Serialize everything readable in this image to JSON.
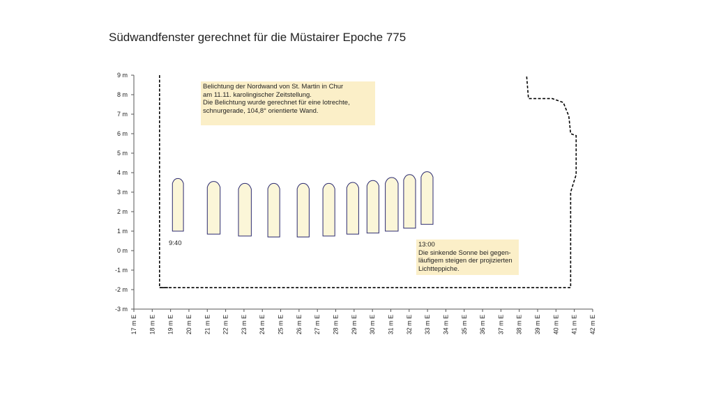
{
  "title": "Südwandfenster gerechnet für die Müstairer Epoche 775",
  "colors": {
    "window_fill": "#fbf6d8",
    "window_stroke": "#2b2a70",
    "note_background": "#fbefc8",
    "axis": "#555555",
    "wall_outline": "#000000"
  },
  "chart_data": {
    "type": "area",
    "grid": false,
    "xlim": [
      17,
      42
    ],
    "ylim": [
      -3,
      9
    ],
    "x_tick_labels": [
      "17 m E",
      "18 m E",
      "19 m E",
      "20 m E",
      "21 m E",
      "22 m E",
      "23 m E",
      "24 m E",
      "25 m E",
      "26 m E",
      "27 m E",
      "28 m E",
      "29 m E",
      "30 m E",
      "31 m E",
      "32 m E",
      "33 m E",
      "34 m E",
      "35 m E",
      "36 m E",
      "37 m E",
      "38 m E",
      "39 m E",
      "40 m E",
      "41 m E",
      "42 m E"
    ],
    "y_tick_labels": [
      "9 m",
      "8 m",
      "7 m",
      "6 m",
      "5 m",
      "4 m",
      "3 m",
      "2 m",
      "1 m",
      "0 m",
      "-1 m",
      "-2 m",
      "-3 m"
    ],
    "light_patches": [
      {
        "x_left": 19.1,
        "x_right": 19.7,
        "y_bottom": 1.0,
        "y_top": 3.7
      },
      {
        "x_left": 21.0,
        "x_right": 21.7,
        "y_bottom": 0.85,
        "y_top": 3.55
      },
      {
        "x_left": 22.7,
        "x_right": 23.4,
        "y_bottom": 0.75,
        "y_top": 3.45
      },
      {
        "x_left": 24.3,
        "x_right": 24.95,
        "y_bottom": 0.7,
        "y_top": 3.45
      },
      {
        "x_left": 25.9,
        "x_right": 26.55,
        "y_bottom": 0.7,
        "y_top": 3.45
      },
      {
        "x_left": 27.3,
        "x_right": 27.95,
        "y_bottom": 0.75,
        "y_top": 3.45
      },
      {
        "x_left": 28.6,
        "x_right": 29.25,
        "y_bottom": 0.85,
        "y_top": 3.5
      },
      {
        "x_left": 29.7,
        "x_right": 30.35,
        "y_bottom": 0.9,
        "y_top": 3.6
      },
      {
        "x_left": 30.7,
        "x_right": 31.4,
        "y_bottom": 1.0,
        "y_top": 3.75
      },
      {
        "x_left": 31.7,
        "x_right": 32.35,
        "y_bottom": 1.15,
        "y_top": 3.9
      },
      {
        "x_left": 32.65,
        "x_right": 33.3,
        "y_bottom": 1.35,
        "y_top": 4.05
      }
    ],
    "wall_outline": [
      {
        "x": 18.4,
        "y": 9.0
      },
      {
        "x": 18.4,
        "y": -1.9
      },
      {
        "x": 40.8,
        "y": -1.9
      },
      {
        "x": 40.8,
        "y": 3.0
      },
      {
        "x": 41.1,
        "y": 3.9
      },
      {
        "x": 41.1,
        "y": 5.9
      },
      {
        "x": 40.8,
        "y": 6.0
      },
      {
        "x": 40.7,
        "y": 6.9
      },
      {
        "x": 40.4,
        "y": 7.6
      },
      {
        "x": 39.8,
        "y": 7.8
      },
      {
        "x": 38.5,
        "y": 7.8
      },
      {
        "x": 38.4,
        "y": 9.0
      }
    ],
    "annotations": [
      {
        "text": "9:40"
      },
      {
        "text": "13:00"
      }
    ]
  },
  "notes": {
    "top": {
      "lines": [
        "Belichtung der Nordwand von St. Martin in Chur",
        "am 11.11.  karolingischer Zeitstellung.",
        "Die Belichtung wurde gerechnet für eine lotrechte,",
        "schnurgerade,  104,8° orientierte Wand."
      ]
    },
    "bottom": {
      "lines": [
        "13:00",
        "Die sinkende Sonne bei gegen-",
        "läufigem steigen der projizierten",
        "Lichtteppiche."
      ]
    },
    "start_time": "9:40"
  }
}
